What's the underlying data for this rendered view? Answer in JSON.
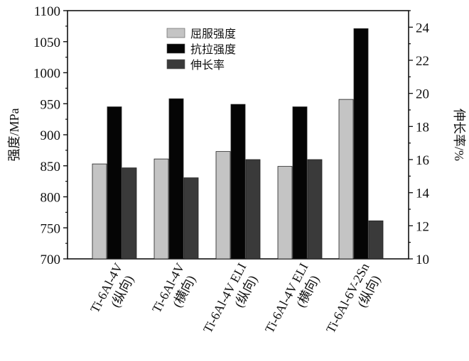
{
  "chart_data": {
    "type": "bar",
    "categories": [
      [
        "Ti-6Al-4V",
        "(纵向)"
      ],
      [
        "Ti-6Al-4V",
        "(横向)"
      ],
      [
        "Ti-6Al-4V ELI",
        "(纵向)"
      ],
      [
        "Ti-6Al-4V ELI",
        "(横向)"
      ],
      [
        "Ti-6Al-6V-2Sn",
        "(纵向)"
      ]
    ],
    "series": [
      {
        "name": "屈服强度",
        "axis": "left",
        "color": "#c4c4c4",
        "values": [
          853,
          861,
          873,
          849,
          957
        ]
      },
      {
        "name": "抗拉强度",
        "axis": "left",
        "color": "#050505",
        "values": [
          945,
          958,
          949,
          945,
          1071
        ]
      },
      {
        "name": "伸长率",
        "axis": "right",
        "color": "#3a3a3a",
        "values": [
          15.5,
          14.9,
          16.0,
          16.0,
          12.3
        ]
      }
    ],
    "ylabel": "强度/MPa",
    "ylabel_right": "伸长率/%",
    "ylim": [
      700,
      1100
    ],
    "ylim_right": [
      10,
      25
    ],
    "yticks": [
      700,
      750,
      800,
      850,
      900,
      950,
      1000,
      1050,
      1100
    ],
    "yticks_right": [
      10,
      12,
      14,
      16,
      18,
      20,
      22,
      24
    ],
    "legend_position": "top-center",
    "grid": false
  }
}
